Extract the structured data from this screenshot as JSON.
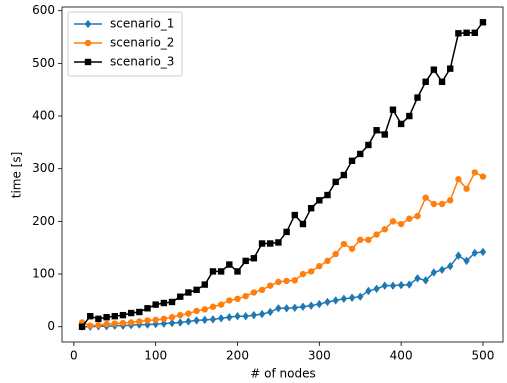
{
  "chart_data": {
    "type": "line",
    "xlabel": "# of nodes",
    "ylabel": "time [s]",
    "x": [
      10,
      20,
      30,
      40,
      50,
      60,
      70,
      80,
      90,
      100,
      110,
      120,
      130,
      140,
      150,
      160,
      170,
      180,
      190,
      200,
      210,
      220,
      230,
      240,
      250,
      260,
      270,
      280,
      290,
      300,
      310,
      320,
      330,
      340,
      350,
      360,
      370,
      380,
      390,
      400,
      410,
      420,
      430,
      440,
      450,
      460,
      470,
      480,
      490,
      500
    ],
    "series": [
      {
        "name": "scenario_1",
        "color": "#1f77b4",
        "marker": "diamond",
        "values": [
          0,
          0,
          1,
          1,
          2,
          2,
          3,
          4,
          4,
          5,
          6,
          7,
          8,
          10,
          12,
          13,
          14,
          16,
          18,
          20,
          20,
          22,
          24,
          28,
          35,
          35,
          36,
          38,
          40,
          43,
          47,
          50,
          53,
          55,
          57,
          68,
          72,
          78,
          78,
          79,
          80,
          92,
          88,
          103,
          108,
          115,
          135,
          125,
          140,
          142
        ]
      },
      {
        "name": "scenario_2",
        "color": "#ff7f0e",
        "marker": "circle",
        "values": [
          8,
          2,
          3,
          5,
          6,
          7,
          8,
          10,
          12,
          13,
          15,
          18,
          22,
          25,
          30,
          33,
          38,
          42,
          50,
          53,
          58,
          65,
          70,
          78,
          85,
          87,
          88,
          100,
          105,
          115,
          125,
          138,
          157,
          148,
          165,
          165,
          175,
          185,
          200,
          195,
          205,
          210,
          245,
          233,
          233,
          240,
          280,
          262,
          293,
          285
        ]
      },
      {
        "name": "scenario_3",
        "color": "#000000",
        "marker": "square",
        "values": [
          0,
          20,
          15,
          18,
          20,
          22,
          26,
          28,
          35,
          42,
          45,
          47,
          57,
          65,
          70,
          80,
          105,
          105,
          118,
          105,
          125,
          130,
          158,
          158,
          160,
          180,
          212,
          195,
          225,
          240,
          250,
          275,
          288,
          315,
          328,
          345,
          373,
          365,
          412,
          385,
          400,
          435,
          465,
          488,
          465,
          490,
          557,
          558,
          558,
          578
        ]
      }
    ],
    "xlim": [
      -14.5,
      524.5
    ],
    "xticks": [
      0,
      100,
      200,
      300,
      400,
      500
    ],
    "ylim": [
      -29,
      607
    ],
    "yticks": [
      0,
      100,
      200,
      300,
      400,
      500,
      600
    ],
    "legend": "upper left"
  }
}
